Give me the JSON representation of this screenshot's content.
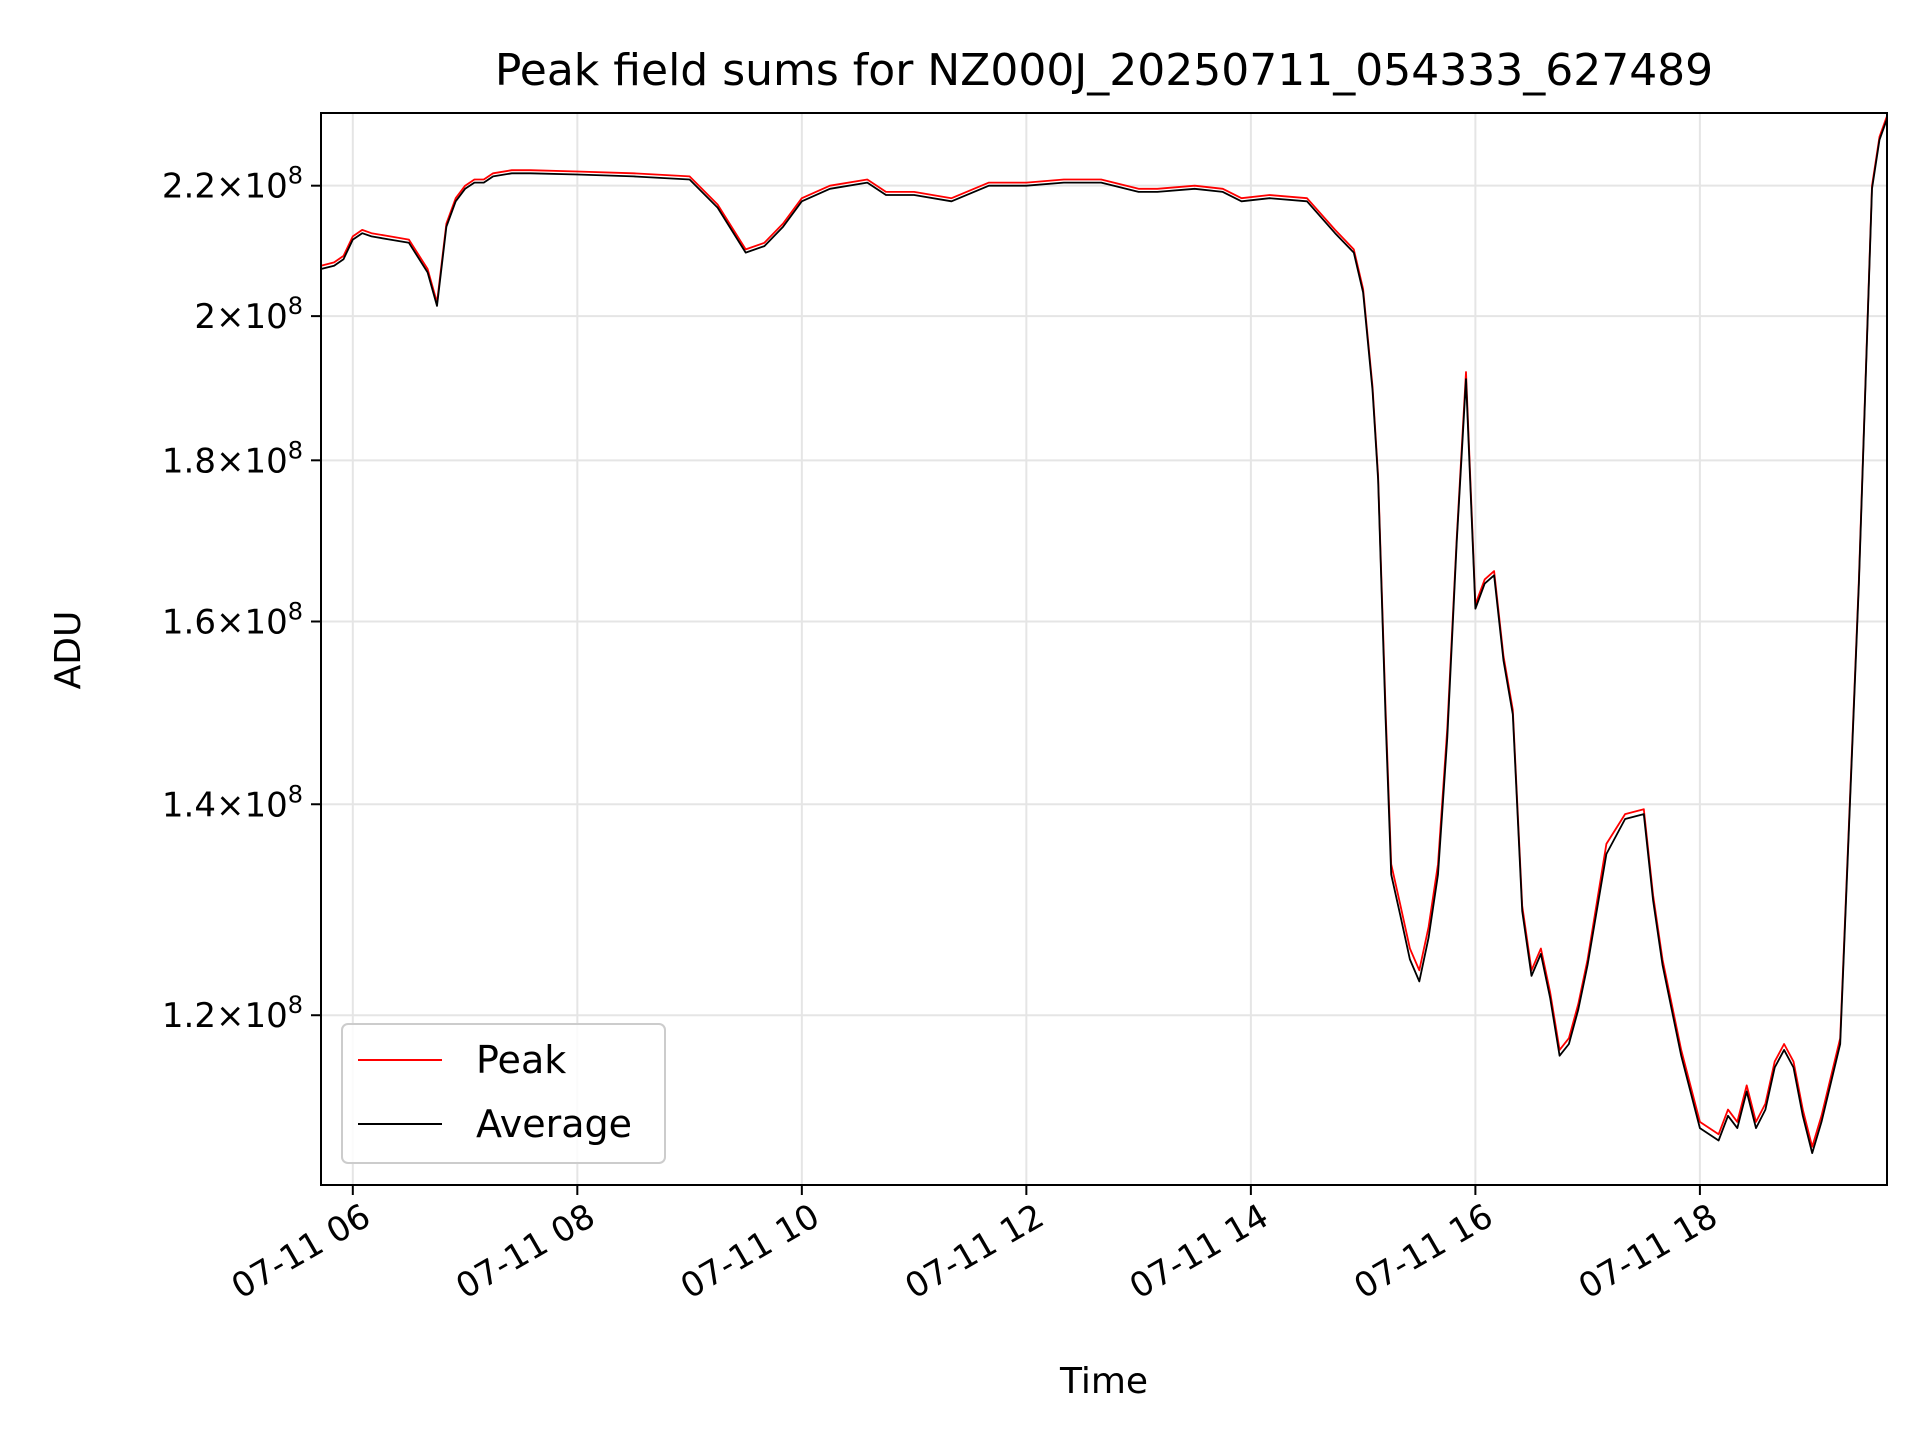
{
  "chart_data": {
    "type": "line",
    "title": "Peak field sums for NZ000J_20250711_054333_627489",
    "xlabel": "Time",
    "ylabel": "ADU",
    "yscale": "log",
    "grid": true,
    "legend_position": "lower-left",
    "xlim": [
      "2025-07-11 05:43",
      "2025-07-11 19:40"
    ],
    "ylim": [
      106000000,
      232000000
    ],
    "x_ticks": [
      {
        "t": "2025-07-11 06:00",
        "label": "07-11 06"
      },
      {
        "t": "2025-07-11 08:00",
        "label": "07-11 08"
      },
      {
        "t": "2025-07-11 10:00",
        "label": "07-11 10"
      },
      {
        "t": "2025-07-11 12:00",
        "label": "07-11 12"
      },
      {
        "t": "2025-07-11 14:00",
        "label": "07-11 14"
      },
      {
        "t": "2025-07-11 16:00",
        "label": "07-11 16"
      },
      {
        "t": "2025-07-11 18:00",
        "label": "07-11 18"
      }
    ],
    "y_ticks": [
      {
        "value": 120000000,
        "mantissa": "1.2",
        "exp": "8"
      },
      {
        "value": 140000000,
        "mantissa": "1.4",
        "exp": "8"
      },
      {
        "value": 160000000,
        "mantissa": "1.6",
        "exp": "8"
      },
      {
        "value": 180000000,
        "mantissa": "1.8",
        "exp": "8"
      },
      {
        "value": 200000000,
        "mantissa": "2",
        "exp": "8"
      },
      {
        "value": 220000000,
        "mantissa": "2.2",
        "exp": "8"
      }
    ],
    "series": [
      {
        "name": "Peak",
        "color": "#ff0000"
      },
      {
        "name": "Average",
        "color": "#000000"
      }
    ],
    "x": [
      "2025-07-11 05:43",
      "2025-07-11 05:50",
      "2025-07-11 05:55",
      "2025-07-11 06:00",
      "2025-07-11 06:05",
      "2025-07-11 06:10",
      "2025-07-11 06:20",
      "2025-07-11 06:30",
      "2025-07-11 06:40",
      "2025-07-11 06:45",
      "2025-07-11 06:50",
      "2025-07-11 06:55",
      "2025-07-11 07:00",
      "2025-07-11 07:05",
      "2025-07-11 07:10",
      "2025-07-11 07:15",
      "2025-07-11 07:25",
      "2025-07-11 07:35",
      "2025-07-11 08:00",
      "2025-07-11 08:30",
      "2025-07-11 09:00",
      "2025-07-11 09:15",
      "2025-07-11 09:30",
      "2025-07-11 09:40",
      "2025-07-11 09:50",
      "2025-07-11 10:00",
      "2025-07-11 10:15",
      "2025-07-11 10:35",
      "2025-07-11 10:45",
      "2025-07-11 11:00",
      "2025-07-11 11:20",
      "2025-07-11 11:40",
      "2025-07-11 12:00",
      "2025-07-11 12:20",
      "2025-07-11 12:40",
      "2025-07-11 13:00",
      "2025-07-11 13:10",
      "2025-07-11 13:30",
      "2025-07-11 13:45",
      "2025-07-11 13:55",
      "2025-07-11 14:10",
      "2025-07-11 14:30",
      "2025-07-11 14:45",
      "2025-07-11 14:55",
      "2025-07-11 15:00",
      "2025-07-11 15:05",
      "2025-07-11 15:08",
      "2025-07-11 15:12",
      "2025-07-11 15:15",
      "2025-07-11 15:20",
      "2025-07-11 15:25",
      "2025-07-11 15:30",
      "2025-07-11 15:35",
      "2025-07-11 15:40",
      "2025-07-11 15:45",
      "2025-07-11 15:50",
      "2025-07-11 15:55",
      "2025-07-11 16:00",
      "2025-07-11 16:05",
      "2025-07-11 16:10",
      "2025-07-11 16:15",
      "2025-07-11 16:20",
      "2025-07-11 16:25",
      "2025-07-11 16:30",
      "2025-07-11 16:35",
      "2025-07-11 16:40",
      "2025-07-11 16:45",
      "2025-07-11 16:50",
      "2025-07-11 16:55",
      "2025-07-11 17:00",
      "2025-07-11 17:10",
      "2025-07-11 17:20",
      "2025-07-11 17:30",
      "2025-07-11 17:35",
      "2025-07-11 17:40",
      "2025-07-11 17:50",
      "2025-07-11 18:00",
      "2025-07-11 18:10",
      "2025-07-11 18:15",
      "2025-07-11 18:20",
      "2025-07-11 18:25",
      "2025-07-11 18:30",
      "2025-07-11 18:35",
      "2025-07-11 18:40",
      "2025-07-11 18:45",
      "2025-07-11 18:50",
      "2025-07-11 18:55",
      "2025-07-11 19:00",
      "2025-07-11 19:05",
      "2025-07-11 19:15",
      "2025-07-11 19:25",
      "2025-07-11 19:32",
      "2025-07-11 19:36",
      "2025-07-11 19:40"
    ],
    "peak": [
      207500000,
      208000000,
      209000000,
      212000000,
      213000000,
      212500000,
      212000000,
      211500000,
      207000000,
      202000000,
      214000000,
      218000000,
      220000000,
      221000000,
      221000000,
      222000000,
      222500000,
      222500000,
      222300000,
      222000000,
      221500000,
      217000000,
      210000000,
      211000000,
      214000000,
      218000000,
      220000000,
      221000000,
      219000000,
      219000000,
      218000000,
      220500000,
      220500000,
      221000000,
      221000000,
      219500000,
      219500000,
      220000000,
      219500000,
      218000000,
      218500000,
      218000000,
      213000000,
      210000000,
      204000000,
      190000000,
      178000000,
      150000000,
      134000000,
      130000000,
      126000000,
      124000000,
      128000000,
      134000000,
      148000000,
      170000000,
      192000000,
      162000000,
      165000000,
      166000000,
      156000000,
      150000000,
      130000000,
      124000000,
      126000000,
      122000000,
      117000000,
      118000000,
      121000000,
      125000000,
      136000000,
      139000000,
      139500000,
      131000000,
      125000000,
      117000000,
      111000000,
      110000000,
      112000000,
      111000000,
      114000000,
      111000000,
      112500000,
      116000000,
      117500000,
      116000000,
      112000000,
      109000000,
      111500000,
      118000000,
      165000000,
      220000000,
      228000000,
      231500000
    ],
    "average": [
      207000000,
      207500000,
      208500000,
      211500000,
      212500000,
      212000000,
      211500000,
      211000000,
      206500000,
      201500000,
      213500000,
      217500000,
      219500000,
      220500000,
      220500000,
      221500000,
      222000000,
      222000000,
      221800000,
      221500000,
      221000000,
      216500000,
      209500000,
      210500000,
      213500000,
      217500000,
      219500000,
      220500000,
      218500000,
      218500000,
      217500000,
      220000000,
      220000000,
      220500000,
      220500000,
      219000000,
      219000000,
      219500000,
      219000000,
      217500000,
      218000000,
      217500000,
      212500000,
      209500000,
      203500000,
      189500000,
      177500000,
      149000000,
      133000000,
      129000000,
      125000000,
      123000000,
      127000000,
      133000000,
      147000000,
      169500000,
      191000000,
      161500000,
      164500000,
      165500000,
      155500000,
      149500000,
      129500000,
      123500000,
      125500000,
      121500000,
      116500000,
      117500000,
      120500000,
      124500000,
      135000000,
      138500000,
      139000000,
      130500000,
      124500000,
      116500000,
      110500000,
      109500000,
      111500000,
      110500000,
      113500000,
      110500000,
      112000000,
      115500000,
      117000000,
      115500000,
      111500000,
      108500000,
      111000000,
      117500000,
      164500000,
      219500000,
      227500000,
      231000000
    ]
  }
}
